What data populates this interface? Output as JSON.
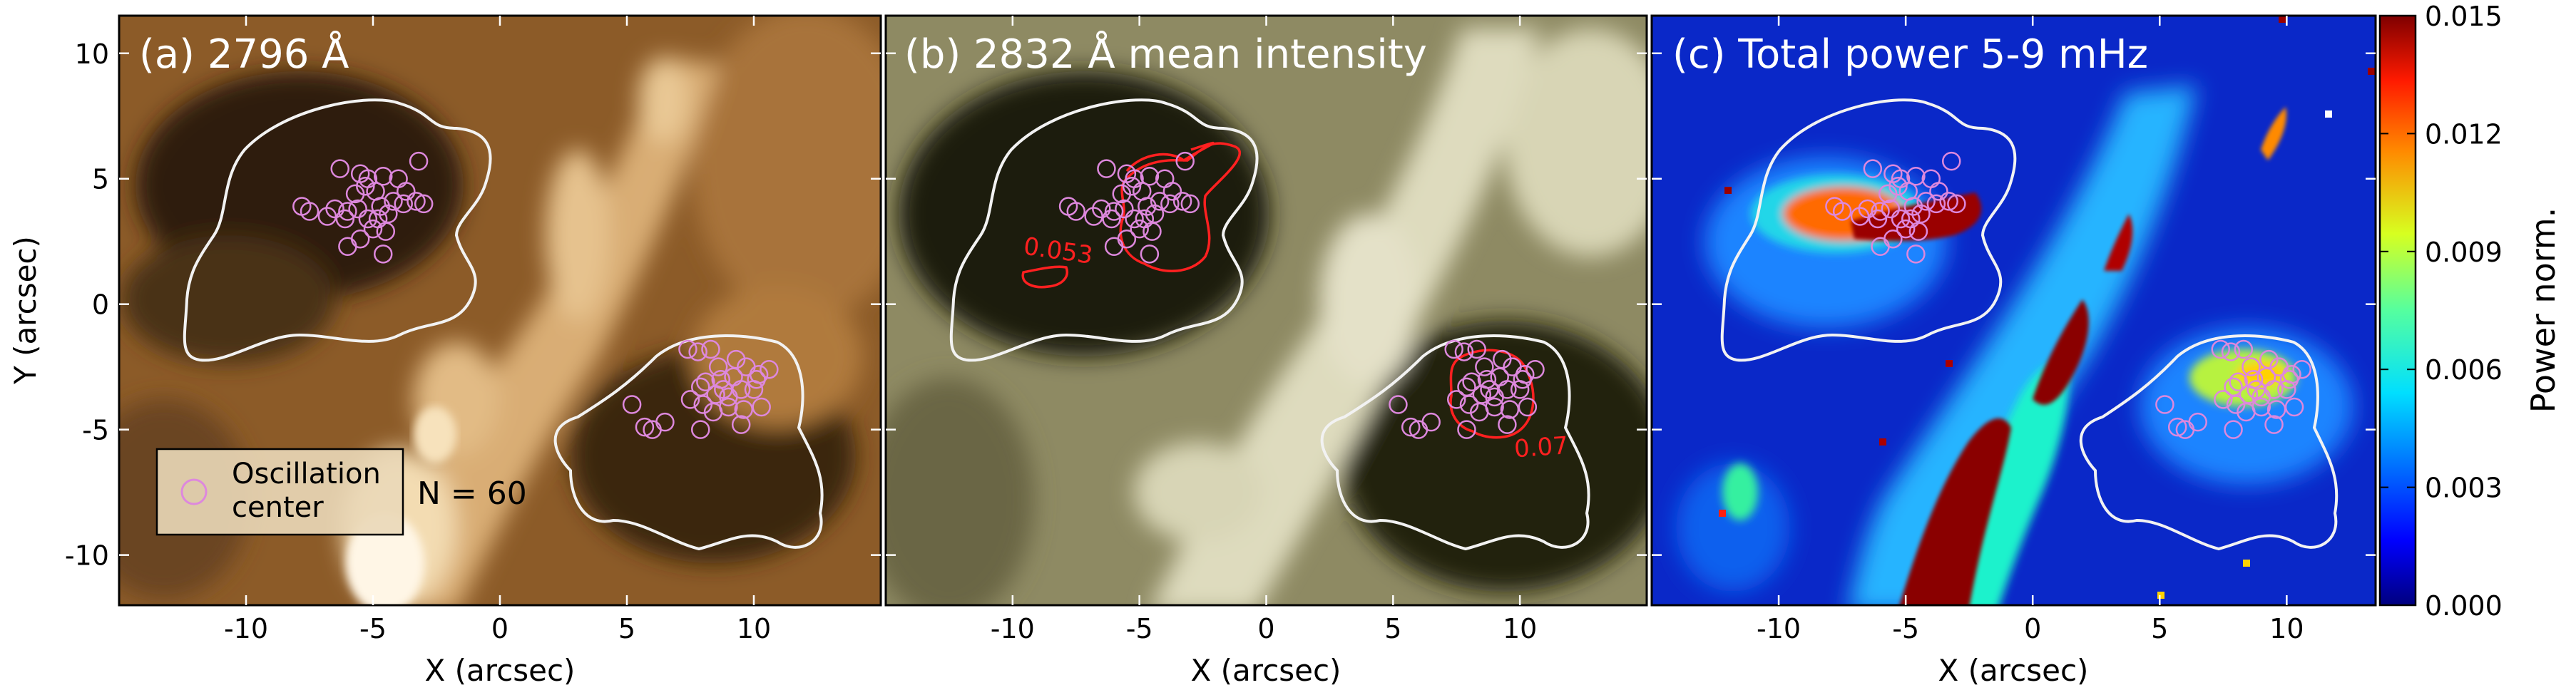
{
  "chart_data": [
    {
      "type": "heatmap",
      "panel_title": "(a) 2796 Å",
      "xlabel": "X (arcsec)",
      "ylabel": "Y (arcsec)",
      "xlim": [
        -15,
        15
      ],
      "ylim": [
        -12,
        11.5
      ],
      "xticks": [
        -10,
        -5,
        0,
        5,
        10
      ],
      "yticks": [
        10,
        5,
        0,
        -5,
        -10
      ],
      "colormap": "copper",
      "legend": {
        "label_line1": "Oscillation",
        "label_line2": "center",
        "placement": "bottom-left"
      },
      "annotation": "N = 60"
    },
    {
      "type": "heatmap",
      "panel_title": "(b) 2832 Å mean intensity",
      "xlabel": "X (arcsec)",
      "xlim": [
        -15,
        15
      ],
      "ylim": [
        -12,
        11.5
      ],
      "xticks": [
        -10,
        -5,
        0,
        5,
        10
      ],
      "colormap": "olive-gray",
      "contour_labels": [
        {
          "text": "0.053",
          "x": -9.6,
          "y": 2.0
        },
        {
          "text": "0.07",
          "x": 9.8,
          "y": -6.1
        }
      ]
    },
    {
      "type": "heatmap",
      "panel_title": "(c) Total power 5-9 mHz",
      "xlabel": "X (arcsec)",
      "xlim": [
        -15,
        13.5
      ],
      "ylim": [
        -12,
        11.5
      ],
      "xticks": [
        -10,
        -5,
        0,
        5,
        10
      ],
      "colormap": "jet",
      "colorbar": {
        "label": "Power norm.",
        "range": [
          0,
          0.015
        ],
        "ticks": [
          "0.015",
          "0.012",
          "0.009",
          "0.006",
          "0.003",
          "0.000"
        ]
      }
    }
  ],
  "oscillation_centers": [
    [
      -6.3,
      5.4
    ],
    [
      -5.5,
      5.2
    ],
    [
      -5.2,
      5.0
    ],
    [
      -4.6,
      5.1
    ],
    [
      -4.0,
      5.0
    ],
    [
      -3.2,
      5.7
    ],
    [
      -7.8,
      3.9
    ],
    [
      -7.5,
      3.7
    ],
    [
      -6.5,
      3.8
    ],
    [
      -6.0,
      3.7
    ],
    [
      -5.6,
      3.8
    ],
    [
      -5.2,
      3.4
    ],
    [
      -4.8,
      3.4
    ],
    [
      -4.4,
      3.6
    ],
    [
      -3.8,
      4.0
    ],
    [
      -3.3,
      4.1
    ],
    [
      -3.0,
      4.0
    ],
    [
      -5.7,
      4.4
    ],
    [
      -4.9,
      4.5
    ],
    [
      -3.7,
      4.5
    ],
    [
      -6.1,
      3.4
    ],
    [
      -5.0,
      3.0
    ],
    [
      -4.5,
      2.9
    ],
    [
      -4.6,
      2.0
    ],
    [
      -6.0,
      2.3
    ],
    [
      -5.5,
      2.6
    ],
    [
      -4.2,
      4.1
    ],
    [
      -6.8,
      3.5
    ],
    [
      -5.3,
      4.7
    ],
    [
      -4.7,
      3.9
    ],
    [
      7.4,
      -1.8
    ],
    [
      7.8,
      -1.9
    ],
    [
      8.3,
      -1.8
    ],
    [
      9.7,
      -2.5
    ],
    [
      10.2,
      -2.8
    ],
    [
      10.6,
      -2.6
    ],
    [
      8.1,
      -3.1
    ],
    [
      8.7,
      -3.0
    ],
    [
      9.2,
      -2.9
    ],
    [
      9.5,
      -3.4
    ],
    [
      8.5,
      -3.6
    ],
    [
      9.0,
      -3.7
    ],
    [
      10.0,
      -3.4
    ],
    [
      7.9,
      -3.3
    ],
    [
      8.4,
      -4.3
    ],
    [
      9.0,
      -4.1
    ],
    [
      9.6,
      -4.2
    ],
    [
      10.3,
      -4.1
    ],
    [
      8.0,
      -4.0
    ],
    [
      8.8,
      -3.4
    ],
    [
      5.2,
      -4.0
    ],
    [
      6.0,
      -5.0
    ],
    [
      6.5,
      -4.7
    ],
    [
      5.7,
      -4.9
    ],
    [
      7.9,
      -5.0
    ],
    [
      9.5,
      -4.8
    ],
    [
      7.5,
      -3.8
    ],
    [
      8.6,
      -2.5
    ],
    [
      9.3,
      -2.2
    ],
    [
      10.1,
      -3.0
    ]
  ],
  "colors": {
    "contour": "#f2f2f2",
    "marker": "#dd88dd",
    "red_contour": "#ff2020"
  }
}
